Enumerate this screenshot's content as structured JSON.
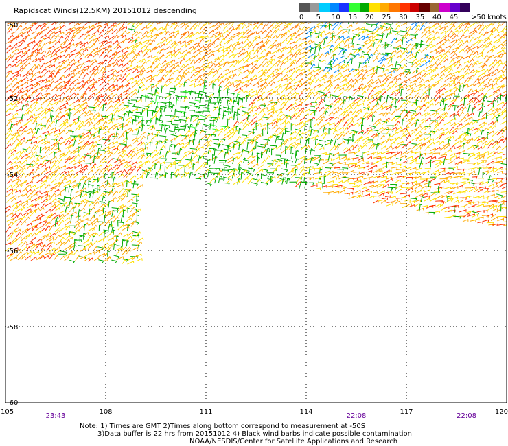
{
  "title": "Rapidscat Winds(12.5KM) 20151012 descending",
  "legend": {
    "unit_label": ">50 knots",
    "colors": [
      "#555555",
      "#999999",
      "#00ccff",
      "#0088ff",
      "#1a33ff",
      "#33ff33",
      "#00aa00",
      "#ffe000",
      "#ffaa00",
      "#ff7700",
      "#ff3300",
      "#cc0000",
      "#660000",
      "#996633",
      "#cc00cc",
      "#6600cc",
      "#33005a"
    ],
    "labels": [
      "0",
      "5",
      "10",
      "15",
      "20",
      "25",
      "30",
      "35",
      "40",
      "45"
    ]
  },
  "map": {
    "lon_ticks": [
      "105",
      "108",
      "111",
      "114",
      "117",
      "120"
    ],
    "lat_ticks": [
      "-50",
      "-52",
      "-54",
      "-56",
      "-58",
      "-60"
    ],
    "lon_range": [
      105,
      120
    ],
    "lat_range": [
      -50,
      -60
    ],
    "time_labels": [
      {
        "text": "23:43",
        "lon": 106.5
      },
      {
        "text": "22:08",
        "lon": 115.5
      },
      {
        "text": "22:08",
        "lon": 118.8
      }
    ]
  },
  "notes": {
    "line1": "Note: 1) Times are GMT 2)Times along bottom correspond to measurement at -50S",
    "line2": "3)Data buffer is 22 hrs from 20151012 4) Black wind barbs indicate possible contamination",
    "line3": "NOAA/NESDIS/Center for Satellite Applications and Research"
  }
}
